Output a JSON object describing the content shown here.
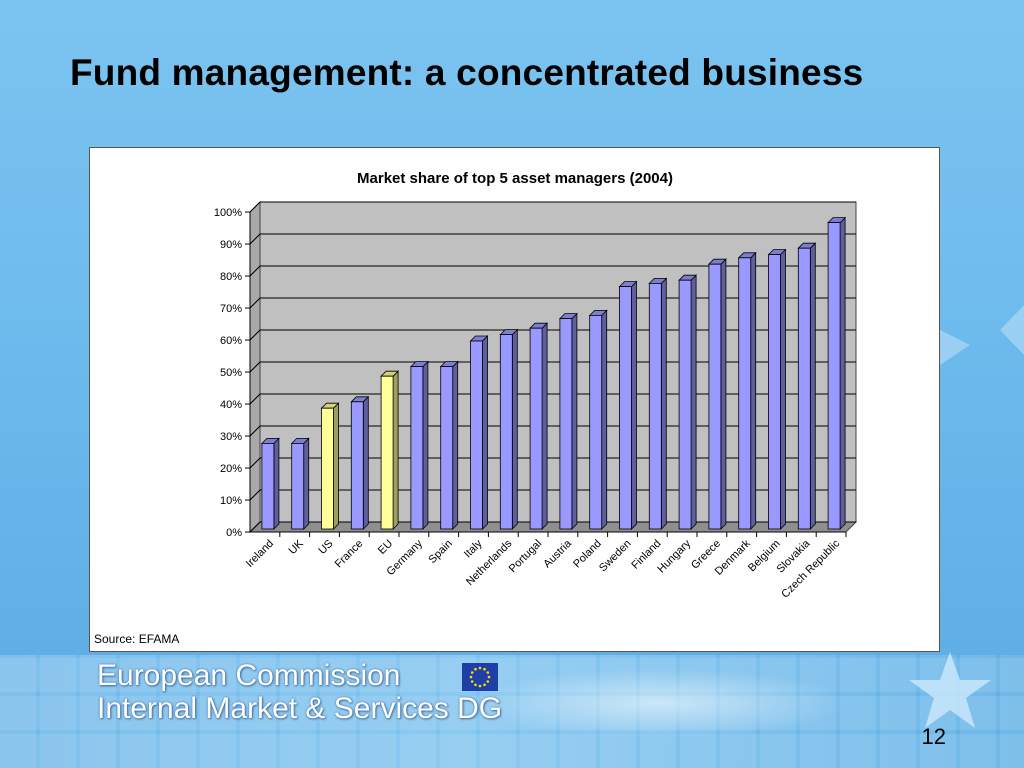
{
  "slide": {
    "title": "Fund management: a concentrated business",
    "source": "Source: EFAMA",
    "page_number": "12",
    "org_line_1": "European Commission",
    "org_line_2": "Internal Market & Services DG"
  },
  "colors": {
    "bar_default": "#9999ff",
    "bar_highlight": "#ffff99",
    "plot_background": "#c0c0c0",
    "gridline": "#000000",
    "eu_flag_blue": "#1f3fa8",
    "eu_flag_star": "#ffdd00"
  },
  "chart_data": {
    "type": "bar",
    "title": "Market share of top 5 asset managers (2004)",
    "xlabel": "",
    "ylabel": "",
    "ylim": [
      0,
      100
    ],
    "yticks": [
      0,
      10,
      20,
      30,
      40,
      50,
      60,
      70,
      80,
      90,
      100
    ],
    "ytick_labels": [
      "0%",
      "10%",
      "20%",
      "30%",
      "40%",
      "50%",
      "60%",
      "70%",
      "80%",
      "90%",
      "100%"
    ],
    "grid": true,
    "three_d": true,
    "categories": [
      "Ireland",
      "UK",
      "US",
      "France",
      "EU",
      "Germany",
      "Spain",
      "Italy",
      "Netherlands",
      "Portugal",
      "Austria",
      "Poland",
      "Sweden",
      "Finland",
      "Hungary",
      "Greece",
      "Denmark",
      "Belgium",
      "Slovakia",
      "Czech Republic"
    ],
    "values": [
      28,
      28,
      39,
      41,
      49,
      52,
      52,
      60,
      62,
      64,
      67,
      68,
      77,
      78,
      79,
      84,
      86,
      87,
      89,
      97
    ],
    "highlighted": [
      "US",
      "EU"
    ]
  }
}
